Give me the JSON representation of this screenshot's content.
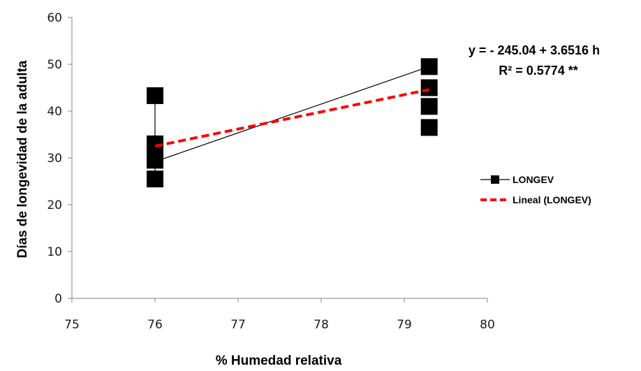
{
  "chart_data": {
    "type": "scatter",
    "title": "",
    "xlabel": "% Humedad relativa",
    "ylabel": "Días de longevidad de la adulta",
    "xlim": [
      75,
      80
    ],
    "ylim": [
      0,
      60
    ],
    "x_ticks": [
      "75",
      "76",
      "77",
      "78",
      "79",
      "80"
    ],
    "y_ticks": [
      "0",
      "10",
      "20",
      "30",
      "40",
      "50",
      "60"
    ],
    "grid": false,
    "legend_position": "right",
    "series": [
      {
        "name": "LONGEV",
        "color": "#000000",
        "marker": "square",
        "points": [
          {
            "x": 76.0,
            "y": 43.3
          },
          {
            "x": 76.0,
            "y": 33.0
          },
          {
            "x": 76.0,
            "y": 29.5
          },
          {
            "x": 76.0,
            "y": 25.5
          },
          {
            "x": 79.3,
            "y": 49.5
          },
          {
            "x": 79.3,
            "y": 45.0
          },
          {
            "x": 79.3,
            "y": 41.0
          },
          {
            "x": 79.3,
            "y": 36.5
          }
        ],
        "line": [
          {
            "x": 76.0,
            "y": 29.2
          },
          {
            "x": 79.3,
            "y": 49.5
          }
        ]
      },
      {
        "name": "Lineal (LONGEV)",
        "color": "#ff0000",
        "style": "dashed",
        "line": [
          {
            "x": 76.0,
            "y": 32.5
          },
          {
            "x": 79.3,
            "y": 44.6
          }
        ]
      }
    ],
    "annotations": {
      "equation": "y = - 245.04 + 3.6516 h",
      "r2_label": "R² = 0.5774 **"
    }
  }
}
